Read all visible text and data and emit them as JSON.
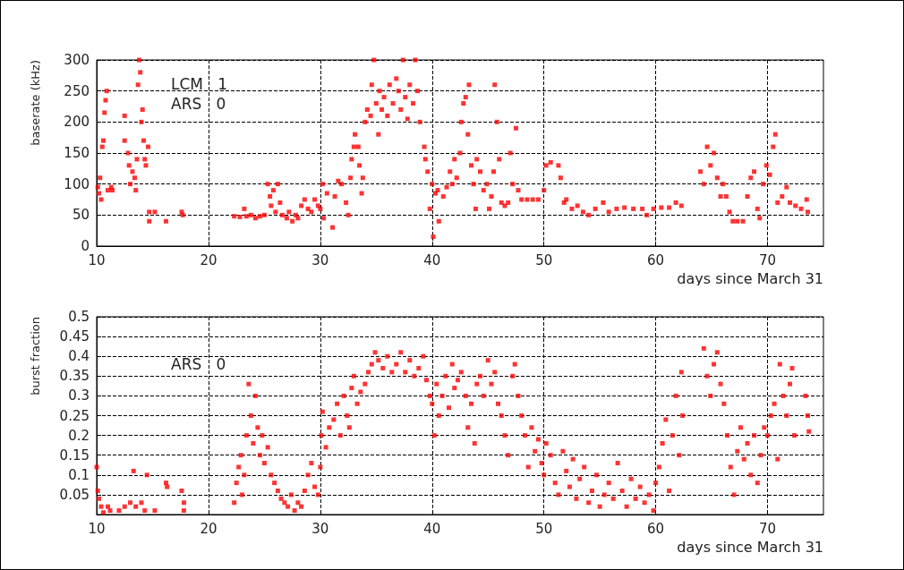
{
  "chart_data": [
    {
      "type": "scatter",
      "ylabel": "baserate (kHz)",
      "xlabel": "days since March 31",
      "annotations": [
        "LCM   1",
        "ARS   0"
      ],
      "marker": "square",
      "grid": true,
      "xlim": [
        10,
        75
      ],
      "xticks": [
        10,
        20,
        30,
        40,
        50,
        60,
        70
      ],
      "ylim": [
        0,
        300
      ],
      "yticks": [
        0,
        50,
        100,
        150,
        200,
        250,
        300
      ],
      "series": [
        {
          "color": "#ff0000",
          "x": [
            10.1,
            10.2,
            10.3,
            10.4,
            10.5,
            10.6,
            10.7,
            10.8,
            10.9,
            11.0,
            11.3,
            11.4,
            12.5,
            12.5,
            12.8,
            12.9,
            13.0,
            13.2,
            13.4,
            13.5,
            13.6,
            13.7,
            13.8,
            13.9,
            14.0,
            14.1,
            14.2,
            14.3,
            14.4,
            14.6,
            14.7,
            14.7,
            15.2,
            16.2,
            17.6,
            17.7,
            22.3,
            22.8,
            23.2,
            23.4,
            23.8,
            24.2,
            24.6,
            25.0,
            25.3,
            25.5,
            25.6,
            25.8,
            26.0,
            26.2,
            26.4,
            26.6,
            27.0,
            27.2,
            27.5,
            27.8,
            28.0,
            28.3,
            28.6,
            28.9,
            29.2,
            29.5,
            29.8,
            30.0,
            30.2,
            30.3,
            30.6,
            31.1,
            31.3,
            31.6,
            31.9,
            32.3,
            32.5,
            32.7,
            32.8,
            33.0,
            33.1,
            33.4,
            33.5,
            33.7,
            33.8,
            34.0,
            34.2,
            34.5,
            34.6,
            34.8,
            35.0,
            35.2,
            35.3,
            35.5,
            35.7,
            36.0,
            36.2,
            36.5,
            36.8,
            37.0,
            37.2,
            37.4,
            37.6,
            37.8,
            38.0,
            38.3,
            38.5,
            38.7,
            38.9,
            39.3,
            39.4,
            39.6,
            39.8,
            40.0,
            40.1,
            40.3,
            40.5,
            40.6,
            41.0,
            41.3,
            41.6,
            41.8,
            42.0,
            42.2,
            42.5,
            42.6,
            42.8,
            43.0,
            43.2,
            43.3,
            43.5,
            43.7,
            43.9,
            44.0,
            44.3,
            44.6,
            44.9,
            45.1,
            45.3,
            45.5,
            45.6,
            45.8,
            46.0,
            46.2,
            46.5,
            46.8,
            47.0,
            47.2,
            47.5,
            47.7,
            48.0,
            48.5,
            49.0,
            49.5,
            50.0,
            50.2,
            50.6,
            51.3,
            51.5,
            51.8,
            52.0,
            52.5,
            53.0,
            53.5,
            54.0,
            54.6,
            55.3,
            55.8,
            56.5,
            57.2,
            58.0,
            58.8,
            59.2,
            59.8,
            60.5,
            61.2,
            61.8,
            62.3,
            64.0,
            64.3,
            64.6,
            64.9,
            65.2,
            65.5,
            65.8,
            66.0,
            66.3,
            66.6,
            66.9,
            67.3,
            67.8,
            68.2,
            68.5,
            68.8,
            69.1,
            69.3,
            69.6,
            69.9,
            70.2,
            70.5,
            70.7,
            70.9,
            71.3,
            71.7,
            72.0,
            72.5,
            73.0,
            73.5,
            73.6
          ],
          "values": [
            95,
            85,
            110,
            75,
            160,
            170,
            215,
            235,
            250,
            90,
            95,
            90,
            210,
            170,
            150,
            130,
            100,
            120,
            110,
            90,
            140,
            260,
            300,
            280,
            200,
            220,
            170,
            140,
            130,
            160,
            55,
            40,
            55,
            40,
            55,
            50,
            48,
            47,
            60,
            48,
            50,
            45,
            48,
            50,
            100,
            80,
            65,
            90,
            55,
            100,
            70,
            50,
            45,
            55,
            40,
            50,
            45,
            65,
            75,
            60,
            55,
            75,
            65,
            60,
            100,
            45,
            85,
            30,
            80,
            105,
            100,
            70,
            50,
            110,
            140,
            160,
            180,
            160,
            130,
            85,
            110,
            200,
            220,
            210,
            260,
            300,
            230,
            180,
            250,
            220,
            240,
            210,
            260,
            230,
            270,
            250,
            220,
            300,
            240,
            205,
            260,
            230,
            300,
            250,
            200,
            160,
            140,
            120,
            60,
            100,
            15,
            85,
            90,
            40,
            80,
            95,
            120,
            100,
            140,
            110,
            150,
            200,
            230,
            240,
            180,
            260,
            130,
            100,
            60,
            140,
            120,
            90,
            100,
            60,
            80,
            120,
            260,
            200,
            140,
            70,
            65,
            70,
            150,
            100,
            190,
            90,
            75,
            75,
            75,
            75,
            90,
            130,
            135,
            130,
            110,
            70,
            75,
            60,
            65,
            55,
            50,
            60,
            70,
            55,
            60,
            62,
            60,
            60,
            50,
            60,
            62,
            62,
            70,
            65,
            120,
            100,
            160,
            130,
            150,
            110,
            80,
            100,
            80,
            55,
            40,
            40,
            40,
            80,
            110,
            120,
            60,
            45,
            100,
            130,
            115,
            160,
            180,
            70,
            80,
            95,
            70,
            65,
            60,
            75,
            55
          ]
        }
      ]
    },
    {
      "type": "scatter",
      "ylabel": "burst fraction",
      "xlabel": "days since March 31",
      "annotations": [
        "ARS   0"
      ],
      "marker": "square",
      "grid": true,
      "xlim": [
        10,
        75
      ],
      "xticks": [
        10,
        20,
        30,
        40,
        50,
        60,
        70
      ],
      "ylim": [
        0,
        0.5
      ],
      "yticks": [
        0.05,
        0.1,
        0.15,
        0.2,
        0.25,
        0.3,
        0.35,
        0.4,
        0.45,
        0.5
      ],
      "series": [
        {
          "color": "#ff0000",
          "x": [
            10.0,
            10.1,
            10.2,
            10.4,
            10.6,
            11.0,
            11.2,
            12.0,
            12.5,
            13.0,
            13.5,
            14.0,
            14.3,
            13.3,
            14.5,
            15.2,
            16.2,
            16.3,
            17.6,
            17.8,
            17.8,
            22.3,
            22.5,
            22.7,
            22.9,
            23.0,
            23.2,
            23.4,
            23.6,
            23.8,
            24.0,
            24.2,
            24.4,
            24.6,
            24.8,
            25.0,
            25.3,
            25.6,
            25.9,
            26.2,
            26.5,
            26.8,
            27.1,
            27.4,
            27.7,
            28.0,
            28.3,
            28.6,
            28.9,
            29.2,
            29.5,
            29.8,
            30.0,
            30.1,
            30.2,
            30.5,
            30.8,
            31.2,
            31.5,
            31.8,
            32.1,
            32.4,
            32.6,
            32.8,
            33.0,
            33.3,
            33.6,
            34.0,
            34.3,
            34.6,
            34.9,
            35.2,
            35.6,
            36.0,
            36.4,
            36.8,
            37.2,
            37.6,
            38.0,
            38.4,
            38.8,
            39.2,
            39.5,
            39.8,
            40.0,
            40.2,
            40.4,
            40.6,
            40.9,
            41.2,
            41.5,
            41.8,
            42.0,
            42.3,
            42.6,
            43.0,
            43.2,
            43.5,
            43.8,
            44.0,
            44.3,
            44.6,
            45.0,
            45.3,
            45.6,
            45.9,
            46.2,
            46.5,
            46.8,
            47.2,
            47.4,
            47.7,
            48.0,
            48.3,
            48.6,
            48.9,
            49.2,
            49.5,
            49.8,
            50.0,
            50.2,
            50.6,
            51.0,
            51.3,
            51.7,
            52.0,
            52.3,
            52.6,
            52.9,
            53.2,
            53.6,
            54.0,
            54.3,
            54.7,
            55.0,
            55.4,
            55.8,
            56.2,
            56.6,
            57.0,
            57.4,
            57.8,
            58.2,
            58.6,
            59.0,
            59.4,
            59.8,
            60.0,
            60.3,
            60.6,
            60.9,
            61.2,
            61.5,
            61.8,
            62.1,
            62.3,
            62.4,
            64.3,
            64.6,
            64.9,
            65.2,
            65.5,
            65.8,
            66.1,
            66.4,
            66.7,
            67.0,
            67.3,
            67.6,
            67.9,
            68.2,
            68.5,
            68.8,
            69.1,
            69.4,
            69.7,
            70.0,
            70.3,
            70.6,
            70.9,
            71.1,
            71.4,
            71.7,
            72.0,
            72.2,
            72.4,
            73.4,
            73.6,
            73.7
          ],
          "values": [
            0.12,
            0.06,
            0.04,
            0.02,
            0.005,
            0.02,
            0.01,
            0.01,
            0.02,
            0.03,
            0.02,
            0.03,
            0.01,
            0.11,
            0.1,
            0.01,
            0.08,
            0.07,
            0.06,
            0.03,
            0.01,
            0.03,
            0.08,
            0.12,
            0.15,
            0.05,
            0.1,
            0.2,
            0.33,
            0.25,
            0.18,
            0.3,
            0.22,
            0.15,
            0.2,
            0.13,
            0.17,
            0.1,
            0.08,
            0.06,
            0.04,
            0.03,
            0.02,
            0.05,
            0.01,
            0.03,
            0.02,
            0.06,
            0.1,
            0.13,
            0.07,
            0.05,
            0.12,
            0.2,
            0.26,
            0.17,
            0.22,
            0.24,
            0.28,
            0.2,
            0.3,
            0.25,
            0.22,
            0.32,
            0.35,
            0.28,
            0.31,
            0.33,
            0.36,
            0.38,
            0.41,
            0.39,
            0.37,
            0.4,
            0.36,
            0.38,
            0.41,
            0.36,
            0.39,
            0.35,
            0.37,
            0.4,
            0.34,
            0.3,
            0.28,
            0.2,
            0.33,
            0.25,
            0.3,
            0.35,
            0.27,
            0.38,
            0.32,
            0.34,
            0.36,
            0.3,
            0.22,
            0.28,
            0.18,
            0.33,
            0.35,
            0.3,
            0.39,
            0.33,
            0.36,
            0.28,
            0.25,
            0.2,
            0.15,
            0.35,
            0.38,
            0.3,
            0.25,
            0.2,
            0.12,
            0.22,
            0.16,
            0.19,
            0.13,
            0.1,
            0.18,
            0.15,
            0.08,
            0.05,
            0.16,
            0.11,
            0.07,
            0.14,
            0.04,
            0.09,
            0.12,
            0.03,
            0.06,
            0.1,
            0.02,
            0.05,
            0.08,
            0.04,
            0.13,
            0.06,
            0.02,
            0.09,
            0.04,
            0.07,
            0.03,
            0.05,
            0.01,
            0.08,
            0.12,
            0.18,
            0.24,
            0.06,
            0.2,
            0.3,
            0.15,
            0.36,
            0.25,
            0.42,
            0.35,
            0.3,
            0.38,
            0.41,
            0.33,
            0.28,
            0.2,
            0.12,
            0.05,
            0.16,
            0.22,
            0.14,
            0.18,
            0.1,
            0.2,
            0.08,
            0.15,
            0.22,
            0.2,
            0.25,
            0.28,
            0.14,
            0.38,
            0.3,
            0.25,
            0.33,
            0.37,
            0.2,
            0.3,
            0.25,
            0.21
          ]
        }
      ]
    }
  ]
}
